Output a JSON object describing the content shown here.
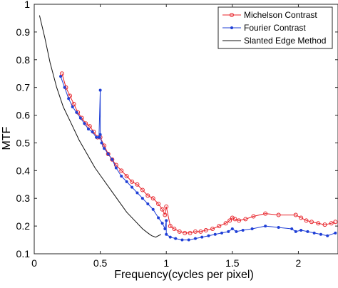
{
  "chart_data": {
    "type": "line",
    "title": "",
    "xlabel": "Frequency(cycles per pixel)",
    "ylabel": "MTF",
    "xlim": [
      0,
      2.3
    ],
    "ylim": [
      0.1,
      1
    ],
    "xticks": [
      0,
      0.5,
      1,
      1.5,
      2
    ],
    "yticks": [
      0.1,
      0.2,
      0.3,
      0.4,
      0.5,
      0.6,
      0.7,
      0.8,
      0.9,
      1
    ],
    "xtick_labels": [
      "0",
      "0.5",
      "1",
      "1.5",
      "2"
    ],
    "ytick_labels": [
      "0.1",
      "0.2",
      "0.3",
      "0.4",
      "0.5",
      "0.6",
      "0.7",
      "0.8",
      "0.9",
      "1"
    ],
    "grid": false,
    "legend_position": "top-right",
    "series": [
      {
        "name": "Michelson Contrast",
        "color": "#e8232a",
        "marker": "open-circle",
        "x": [
          0.21,
          0.24,
          0.27,
          0.3,
          0.33,
          0.36,
          0.39,
          0.42,
          0.45,
          0.48,
          0.5,
          0.53,
          0.56,
          0.59,
          0.62,
          0.66,
          0.7,
          0.74,
          0.78,
          0.82,
          0.86,
          0.9,
          0.94,
          0.97,
          0.99,
          1.0,
          1.03,
          1.06,
          1.1,
          1.14,
          1.18,
          1.22,
          1.26,
          1.3,
          1.35,
          1.4,
          1.45,
          1.48,
          1.5,
          1.52,
          1.55,
          1.6,
          1.66,
          1.75,
          1.85,
          1.98,
          2.02,
          2.06,
          2.1,
          2.15,
          2.2,
          2.25,
          2.28
        ],
        "y": [
          0.75,
          0.7,
          0.67,
          0.64,
          0.61,
          0.59,
          0.57,
          0.56,
          0.54,
          0.52,
          0.52,
          0.49,
          0.46,
          0.44,
          0.42,
          0.4,
          0.38,
          0.36,
          0.35,
          0.33,
          0.31,
          0.3,
          0.28,
          0.26,
          0.24,
          0.27,
          0.2,
          0.19,
          0.18,
          0.175,
          0.175,
          0.18,
          0.18,
          0.185,
          0.19,
          0.2,
          0.21,
          0.22,
          0.23,
          0.225,
          0.22,
          0.225,
          0.235,
          0.245,
          0.24,
          0.24,
          0.23,
          0.22,
          0.215,
          0.21,
          0.205,
          0.21,
          0.215
        ]
      },
      {
        "name": "Fourier Contrast",
        "color": "#1f3fd6",
        "marker": "filled-dot",
        "x": [
          0.2,
          0.23,
          0.26,
          0.29,
          0.32,
          0.35,
          0.38,
          0.41,
          0.44,
          0.47,
          0.49,
          0.5,
          0.5,
          0.51,
          0.53,
          0.56,
          0.59,
          0.62,
          0.66,
          0.7,
          0.74,
          0.78,
          0.82,
          0.86,
          0.9,
          0.94,
          0.97,
          0.99,
          1.0,
          1.0,
          1.03,
          1.07,
          1.12,
          1.17,
          1.22,
          1.27,
          1.32,
          1.37,
          1.42,
          1.47,
          1.5,
          1.53,
          1.58,
          1.65,
          1.75,
          1.85,
          1.95,
          1.98,
          2.02,
          2.07,
          2.12,
          2.17,
          2.22,
          2.28
        ],
        "y": [
          0.74,
          0.7,
          0.66,
          0.63,
          0.61,
          0.59,
          0.57,
          0.55,
          0.54,
          0.52,
          0.52,
          0.69,
          0.53,
          0.5,
          0.48,
          0.46,
          0.44,
          0.41,
          0.38,
          0.36,
          0.34,
          0.32,
          0.3,
          0.28,
          0.26,
          0.23,
          0.21,
          0.19,
          0.22,
          0.17,
          0.16,
          0.155,
          0.15,
          0.15,
          0.155,
          0.16,
          0.165,
          0.17,
          0.175,
          0.18,
          0.19,
          0.18,
          0.185,
          0.19,
          0.2,
          0.195,
          0.19,
          0.18,
          0.185,
          0.18,
          0.175,
          0.17,
          0.165,
          0.175
        ]
      },
      {
        "name": "Slanted Edge Method",
        "color": "#111111",
        "marker": "none",
        "x": [
          0.04,
          0.08,
          0.12,
          0.17,
          0.22,
          0.28,
          0.34,
          0.4,
          0.46,
          0.52,
          0.58,
          0.64,
          0.7,
          0.76,
          0.82,
          0.86,
          0.89,
          0.92,
          0.94,
          0.96
        ],
        "y": [
          0.96,
          0.88,
          0.79,
          0.7,
          0.63,
          0.57,
          0.51,
          0.46,
          0.41,
          0.37,
          0.33,
          0.29,
          0.25,
          0.22,
          0.19,
          0.175,
          0.165,
          0.16,
          0.165,
          0.17
        ]
      }
    ]
  }
}
